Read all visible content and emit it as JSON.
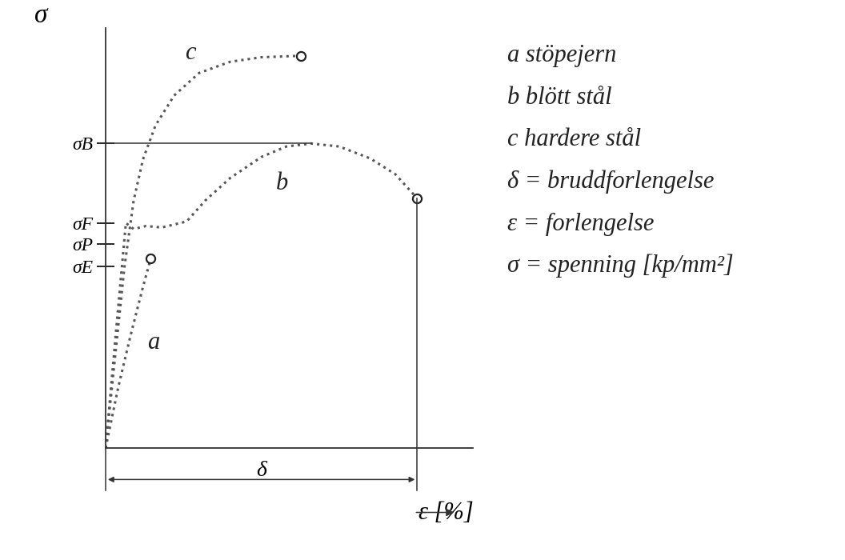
{
  "chart_data": {
    "type": "line",
    "x_label": "ε [%]",
    "y_label": "σ",
    "xlim": [
      0,
      118
    ],
    "ylim": [
      0,
      56
    ],
    "xticks": [],
    "yticks": [
      {
        "value": 40.6,
        "label": "σB"
      },
      {
        "value": 30,
        "label": "σF"
      },
      {
        "value": 27.2,
        "label": "σP"
      },
      {
        "value": 24.2,
        "label": "σE"
      }
    ],
    "tick_labels": "y",
    "grid": false,
    "line_style": "dotted",
    "marker": "circle",
    "series": [
      {
        "name": "a",
        "color": "#555555",
        "x": [
          0,
          4,
          8,
          12,
          14.5
        ],
        "values": [
          0,
          8,
          15,
          21.5,
          25.3
        ]
      },
      {
        "name": "b",
        "color": "#555555",
        "x": [
          0,
          3,
          6.5,
          9,
          13,
          18,
          26,
          32,
          40,
          50,
          58,
          66,
          75,
          85,
          93,
          100
        ],
        "values": [
          0,
          14,
          30,
          29.2,
          29.6,
          29.4,
          30.2,
          33,
          36,
          38.8,
          40.2,
          40.6,
          40.2,
          38.6,
          36.5,
          33.3
        ]
      },
      {
        "name": "c",
        "color": "#555555",
        "x": [
          0,
          3,
          6,
          9,
          12,
          16,
          22,
          30,
          40,
          50,
          62.6
        ],
        "values": [
          0,
          12,
          24,
          33,
          38.5,
          43,
          47,
          50,
          51.5,
          52.1,
          52.3
        ]
      }
    ],
    "annotations": {
      "key": [
        "a stöpejern",
        "b blött stål",
        "c hardere stål",
        "δ = bruddforlengelse",
        "ε = forlengelse",
        "σ = spenning [kp/mm²]"
      ],
      "dimension": "δ"
    }
  }
}
